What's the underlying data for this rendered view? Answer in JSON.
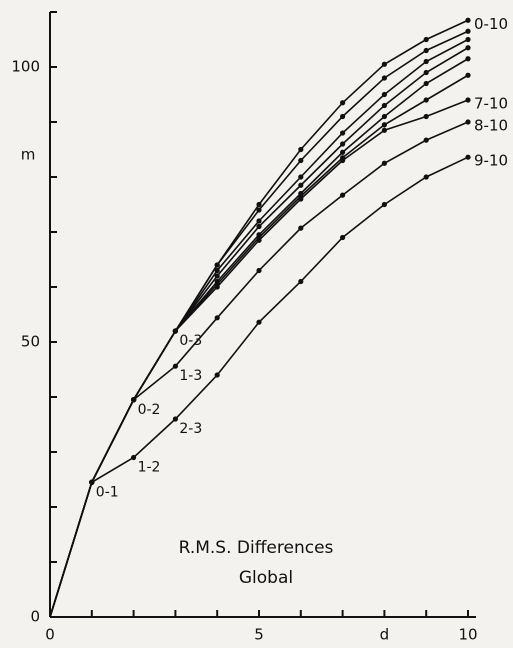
{
  "chart_data": {
    "type": "line",
    "title": "R.M.S.  Differences",
    "subtitle": "Global",
    "y_label": "m",
    "x_label": "d",
    "x": [
      0,
      1,
      2,
      3,
      4,
      5,
      6,
      7,
      8,
      9,
      10
    ],
    "series": [
      {
        "name": "0-10",
        "color": "#111111",
        "values": [
          0,
          24.5,
          39.5,
          52,
          64,
          75,
          85,
          93.5,
          100.5,
          105,
          108.5
        ]
      },
      {
        "color": "#111111",
        "values": [
          0,
          24.5,
          39.5,
          52,
          64,
          74,
          83,
          91,
          98,
          103,
          106.5
        ]
      },
      {
        "color": "#111111",
        "values": [
          0,
          24.5,
          39.5,
          52,
          63,
          72,
          80,
          88,
          95,
          101,
          105
        ]
      },
      {
        "color": "#111111",
        "values": [
          0,
          24.5,
          39.5,
          52,
          62,
          71,
          78.5,
          86,
          93,
          99,
          103.5
        ]
      },
      {
        "color": "#111111",
        "values": [
          0,
          24.5,
          39.5,
          52,
          61,
          69.5,
          77,
          84.5,
          91,
          97,
          101.5
        ]
      },
      {
        "color": "#111111",
        "values": [
          0,
          24.5,
          39.5,
          52,
          60.5,
          69,
          76.5,
          83.5,
          89.5,
          94,
          98.5
        ]
      },
      {
        "name": "7-10",
        "color": "#111111",
        "values": [
          0,
          24.5,
          39.5,
          52,
          60,
          68.5,
          76,
          83,
          88.5,
          91,
          94
        ]
      },
      {
        "name": "8-10",
        "color": "#111111",
        "values": [
          0,
          24.5,
          39.5,
          45.6,
          54.4,
          63,
          70.7,
          76.7,
          82.5,
          86.7,
          90
        ]
      },
      {
        "name": "9-10",
        "color": "#111111",
        "values": [
          0,
          24.5,
          29,
          36,
          44,
          53.6,
          61,
          69,
          75,
          80,
          83.6
        ]
      }
    ],
    "annotations": [
      {
        "text": "0-1",
        "x": 1,
        "y": 24.5
      },
      {
        "text": "1-2",
        "x": 2,
        "y": 29
      },
      {
        "text": "0-2",
        "x": 2,
        "y": 39.5
      },
      {
        "text": "2-3",
        "x": 3,
        "y": 36
      },
      {
        "text": "1-3",
        "x": 3,
        "y": 45.6
      },
      {
        "text": "0-3",
        "x": 3,
        "y": 52
      }
    ],
    "xlim": [
      0,
      10
    ],
    "ylim": [
      0,
      110
    ],
    "xticks": [
      0,
      5,
      10
    ],
    "yticks": [
      0,
      50,
      100
    ],
    "xminorticks": [
      1,
      2,
      3,
      4,
      6,
      7,
      8,
      9
    ],
    "yminorticks": [
      10,
      20,
      30,
      40,
      60,
      70,
      80,
      90,
      110
    ]
  }
}
